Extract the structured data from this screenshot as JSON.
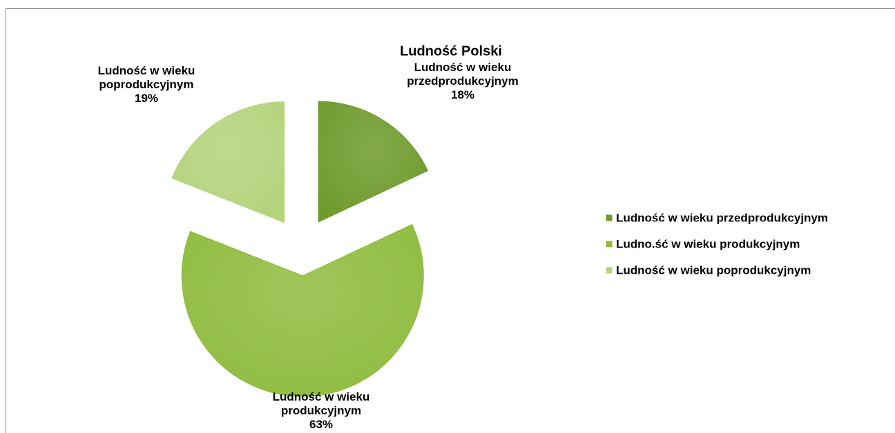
{
  "chart_data": {
    "type": "pie",
    "title": "Ludność Polski",
    "categories": [
      "Ludność w wieku przedprodukcyjnym",
      "Ludność w wieku produkcyjnym",
      "Ludność w wieku poprodukcyjnym"
    ],
    "values": [
      18,
      63,
      19
    ],
    "value_labels": [
      "18%",
      "63%",
      "19%"
    ],
    "colors": [
      "#6e9a2c",
      "#8fbc3f",
      "#b4d37c"
    ],
    "legend_labels": [
      "Ludność w wieku przedprodukcyjnym",
      "Ludno.ść w wieku produkcyjnym",
      "Ludność w wieku poprodukcyjnym"
    ],
    "legend": "right"
  }
}
